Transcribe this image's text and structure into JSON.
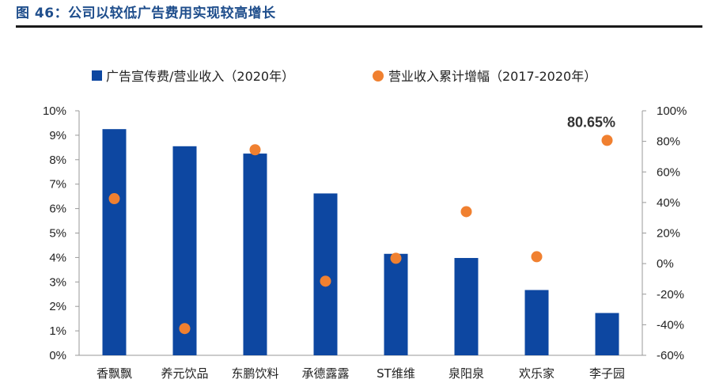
{
  "figure": {
    "title": "图 46：公司以较低广告费用实现较高增长"
  },
  "chart_data": {
    "type": "bar",
    "categories": [
      "香飘飘",
      "养元饮品",
      "东鹏饮料",
      "承德露露",
      "ST维维",
      "泉阳泉",
      "欢乐家",
      "李子园"
    ],
    "series": [
      {
        "name": "广告宣传费/营业收入（2020年）",
        "type": "bar",
        "axis": "left",
        "color": "#0d47a1",
        "values": [
          9.25,
          8.55,
          8.25,
          6.62,
          4.15,
          3.98,
          2.67,
          1.73
        ]
      },
      {
        "name": "营业收入累计增幅（2017-2020年）",
        "type": "scatter",
        "axis": "right",
        "color": "#f08030",
        "values": [
          42.5,
          -42.5,
          74.5,
          -11.5,
          3.5,
          34.0,
          4.5,
          80.65
        ]
      }
    ],
    "y_left": {
      "lim": [
        0,
        10
      ],
      "ticks": [
        0,
        1,
        2,
        3,
        4,
        5,
        6,
        7,
        8,
        9,
        10
      ],
      "tick_labels": [
        "0%",
        "1%",
        "2%",
        "3%",
        "4%",
        "5%",
        "6%",
        "7%",
        "8%",
        "9%",
        "10%"
      ]
    },
    "y_right": {
      "lim": [
        -60,
        100
      ],
      "ticks": [
        -60,
        -40,
        -20,
        0,
        20,
        40,
        60,
        80,
        100
      ],
      "tick_labels": [
        "-60%",
        "-40%",
        "-20%",
        "0%",
        "20%",
        "40%",
        "60%",
        "80%",
        "100%"
      ]
    },
    "annotations": [
      {
        "text": "80.65%",
        "category": "李子园",
        "series": 1,
        "value": 80.65
      }
    ],
    "legend_position": "top",
    "grid": false
  }
}
